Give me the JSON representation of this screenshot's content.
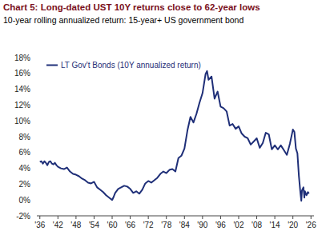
{
  "chart_data": {
    "type": "line",
    "title": "Chart 5: Long-dated UST 10Y returns close to 62-year lows",
    "subtitle": "10-year rolling annualized return: 15-year+ US government bond",
    "x": [
      1936,
      1936.5,
      1937,
      1937.5,
      1938,
      1938.5,
      1939,
      1939.5,
      1940,
      1940.5,
      1941,
      1941.5,
      1942,
      1943,
      1944,
      1945,
      1946,
      1947,
      1948,
      1949,
      1950,
      1951,
      1952,
      1953,
      1954,
      1955,
      1956,
      1957,
      1958,
      1959,
      1960,
      1960.5,
      1961,
      1962,
      1963,
      1964,
      1965,
      1966,
      1967,
      1968,
      1969,
      1970,
      1971,
      1972,
      1973,
      1974,
      1975,
      1976,
      1977,
      1978,
      1979,
      1980,
      1981,
      1982,
      1983,
      1984,
      1985,
      1986,
      1987,
      1988,
      1989,
      1990,
      1991,
      1991.5,
      1992,
      1993,
      1994,
      1995,
      1996,
      1997,
      1998,
      1999,
      2000,
      2001,
      2002,
      2003,
      2004,
      2005,
      2006,
      2007,
      2008,
      2009,
      2010,
      2011,
      2012,
      2013,
      2014,
      2015,
      2016,
      2017,
      2018,
      2019,
      2020,
      2020.5,
      2021,
      2021.5,
      2022,
      2022.5,
      2022.8,
      2023,
      2023.5,
      2023.8,
      2024,
      2024.5,
      2025,
      2025.3
    ],
    "series": [
      {
        "name": "LT Gov't Bonds (10Y annualized return)",
        "color": "#1f2f78",
        "values": [
          4.8,
          4.9,
          4.6,
          4.9,
          4.7,
          4.4,
          4.8,
          4.9,
          4.6,
          4.5,
          4.7,
          4.4,
          4.2,
          4.0,
          3.9,
          4.1,
          3.6,
          3.3,
          3.2,
          3.0,
          2.7,
          2.5,
          2.2,
          2.1,
          2.3,
          1.6,
          1.3,
          1.0,
          0.6,
          0.3,
          0.0,
          0.4,
          0.9,
          1.4,
          1.6,
          1.8,
          1.7,
          1.4,
          0.9,
          1.1,
          0.8,
          1.3,
          2.1,
          2.4,
          2.2,
          2.5,
          2.8,
          3.3,
          3.6,
          3.4,
          3.8,
          3.9,
          3.6,
          5.3,
          5.6,
          6.5,
          8.8,
          10.5,
          9.8,
          10.9,
          12.3,
          13.5,
          15.9,
          16.3,
          15.2,
          15.6,
          12.8,
          13.7,
          11.8,
          11.6,
          11.2,
          9.4,
          9.6,
          9.0,
          9.3,
          8.4,
          8.0,
          7.8,
          7.0,
          7.4,
          7.8,
          6.6,
          7.2,
          8.5,
          8.3,
          6.4,
          6.9,
          6.4,
          6.9,
          6.3,
          5.7,
          7.1,
          8.9,
          8.6,
          6.5,
          5.9,
          3.0,
          0.9,
          -0.1,
          1.2,
          1.6,
          0.3,
          1.1,
          0.6,
          1.0,
          0.8
        ]
      }
    ],
    "xlim": [
      1935,
      2027
    ],
    "xticks": [
      {
        "value": 1936,
        "label": "'36"
      },
      {
        "value": 1942,
        "label": "'42"
      },
      {
        "value": 1948,
        "label": "'48"
      },
      {
        "value": 1954,
        "label": "'54"
      },
      {
        "value": 1960,
        "label": "'60"
      },
      {
        "value": 1966,
        "label": "'66"
      },
      {
        "value": 1972,
        "label": "'72"
      },
      {
        "value": 1978,
        "label": "'78"
      },
      {
        "value": 1984,
        "label": "'84"
      },
      {
        "value": 1990,
        "label": "'90"
      },
      {
        "value": 1996,
        "label": "'96"
      },
      {
        "value": 2002,
        "label": "'02"
      },
      {
        "value": 2008,
        "label": "'08"
      },
      {
        "value": 2014,
        "label": "'14"
      },
      {
        "value": 2020,
        "label": "'20"
      },
      {
        "value": 2026,
        "label": "'26"
      }
    ],
    "ylim": [
      -2,
      18
    ],
    "yticks": [
      {
        "value": -2,
        "label": "-2%"
      },
      {
        "value": 0,
        "label": "0%"
      },
      {
        "value": 2,
        "label": "2%"
      },
      {
        "value": 4,
        "label": "4%"
      },
      {
        "value": 6,
        "label": "6%"
      },
      {
        "value": 8,
        "label": "8%"
      },
      {
        "value": 10,
        "label": "10%"
      },
      {
        "value": 12,
        "label": "12%"
      },
      {
        "value": 14,
        "label": "14%"
      },
      {
        "value": 16,
        "label": "16%"
      },
      {
        "value": 18,
        "label": "18%"
      }
    ],
    "grid": false,
    "legend": "top-left"
  }
}
